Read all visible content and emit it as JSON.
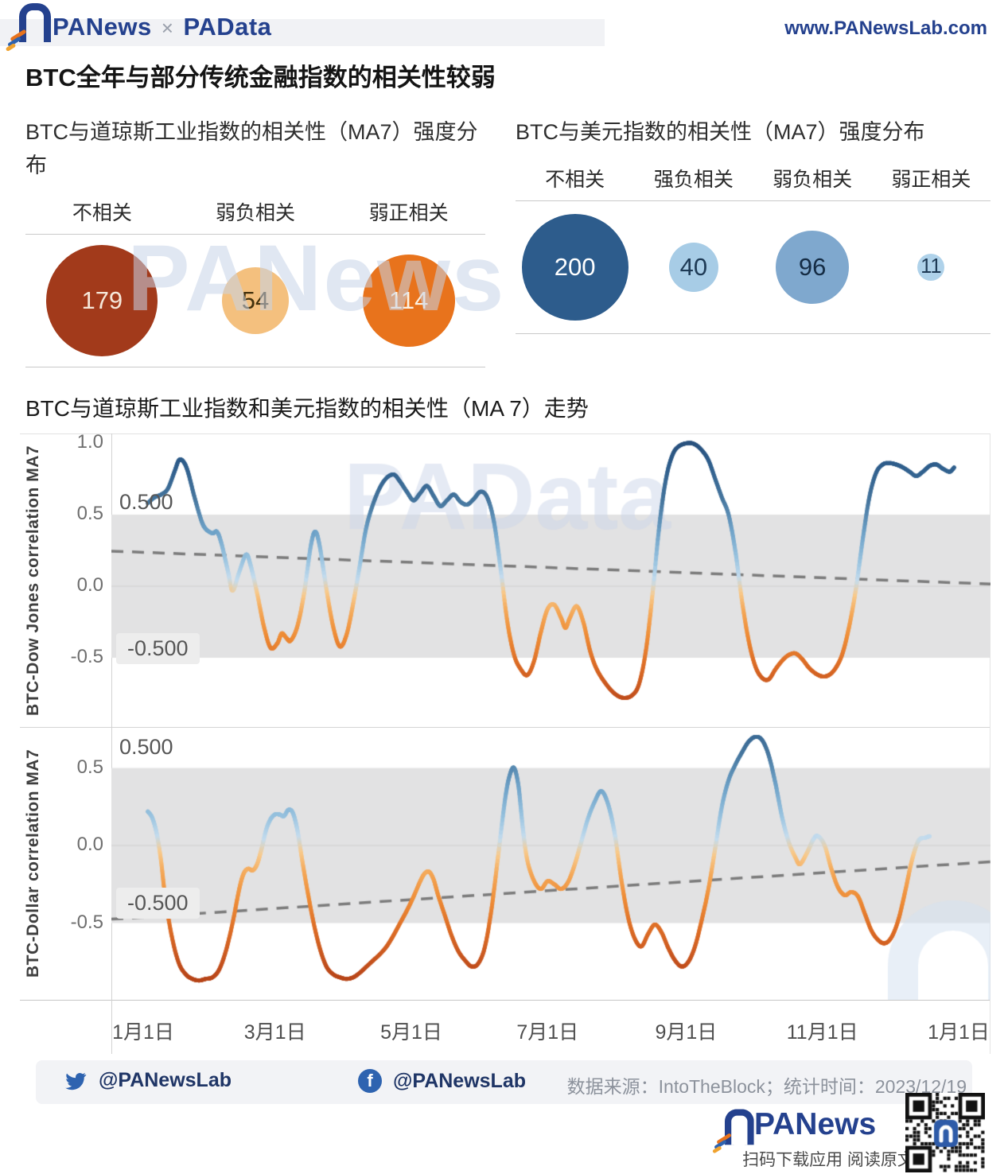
{
  "header": {
    "brand": "PANews",
    "sep": "×",
    "brand2": "PAData",
    "url": "www.PANewsLab.com"
  },
  "main_title": "BTC全年与部分传统金融指数的相关性较弱",
  "watermarks": {
    "bubbles": "PANews",
    "chart": "PAData"
  },
  "trend_title": "BTC与道琼斯工业指数和美元指数的相关性（MA 7）走势",
  "x_axis": {
    "labels": [
      "1月1日",
      "3月1日",
      "5月1日",
      "7月1日",
      "9月1日",
      "11月1日",
      "1月1日"
    ],
    "days": [
      0,
      59,
      120,
      181,
      243,
      304,
      365
    ]
  },
  "chart_data": [
    {
      "type": "bubble",
      "title": "BTC与道琼斯工业指数的相关性（MA7）强度分布",
      "categories": [
        "不相关",
        "弱负相关",
        "弱正相关"
      ],
      "values": [
        179,
        54,
        114
      ],
      "colors": [
        "#A23A1B",
        "#F4C07E",
        "#E8731C"
      ],
      "text_colors": [
        "#F6E8DA",
        "#41300C",
        "#FCF2E3"
      ],
      "radii": [
        70,
        42,
        58
      ]
    },
    {
      "type": "bubble",
      "title": "BTC与美元指数的相关性（MA7）强度分布",
      "categories": [
        "不相关",
        "强负相关",
        "弱负相关",
        "弱正相关"
      ],
      "values": [
        200,
        40,
        96,
        11
      ],
      "colors": [
        "#2D5C8C",
        "#A7CCE6",
        "#7FA8CE",
        "#AFD2EA"
      ],
      "text_colors": [
        "#FFFFFF",
        "#1E3A55",
        "#152C44",
        "#1E3A55"
      ],
      "radii": [
        67,
        31,
        46,
        17
      ]
    },
    {
      "type": "line",
      "name": "btc_dow_jones",
      "ylabel": "BTC-Dow Jones correlation MA7",
      "yticks": [
        "1.0",
        "0.5",
        "0.0",
        "-0.5"
      ],
      "ytick_values": [
        1.0,
        0.5,
        0.0,
        -0.5
      ],
      "ylim": [
        -1.0,
        1.05
      ],
      "band": [
        -0.5,
        0.5
      ],
      "band_label_top": "0.500",
      "band_label_bottom": "-0.500",
      "trend_start": 0.245,
      "trend_end": 0.015,
      "grid": false,
      "points": [
        [
          2,
          0.58
        ],
        [
          5,
          0.62
        ],
        [
          8,
          0.64
        ],
        [
          11,
          0.68
        ],
        [
          14,
          0.8
        ],
        [
          16,
          0.88
        ],
        [
          18,
          0.87
        ],
        [
          20,
          0.8
        ],
        [
          23,
          0.62
        ],
        [
          26,
          0.46
        ],
        [
          28,
          0.4
        ],
        [
          31,
          0.37
        ],
        [
          33,
          0.38
        ],
        [
          35,
          0.3
        ],
        [
          38,
          0.1
        ],
        [
          40,
          -0.03
        ],
        [
          43,
          0.1
        ],
        [
          46,
          0.22
        ],
        [
          48,
          0.15
        ],
        [
          51,
          -0.05
        ],
        [
          54,
          -0.28
        ],
        [
          57,
          -0.43
        ],
        [
          60,
          -0.4
        ],
        [
          62,
          -0.33
        ],
        [
          64,
          -0.36
        ],
        [
          66,
          -0.38
        ],
        [
          69,
          -0.28
        ],
        [
          72,
          -0.05
        ],
        [
          75,
          0.28
        ],
        [
          77,
          0.38
        ],
        [
          79,
          0.28
        ],
        [
          82,
          -0.02
        ],
        [
          85,
          -0.28
        ],
        [
          88,
          -0.42
        ],
        [
          91,
          -0.34
        ],
        [
          94,
          -0.12
        ],
        [
          97,
          0.15
        ],
        [
          100,
          0.42
        ],
        [
          104,
          0.62
        ],
        [
          108,
          0.74
        ],
        [
          112,
          0.78
        ],
        [
          115,
          0.73
        ],
        [
          118,
          0.66
        ],
        [
          121,
          0.6
        ],
        [
          124,
          0.65
        ],
        [
          127,
          0.7
        ],
        [
          130,
          0.63
        ],
        [
          133,
          0.56
        ],
        [
          136,
          0.6
        ],
        [
          139,
          0.64
        ],
        [
          142,
          0.59
        ],
        [
          145,
          0.57
        ],
        [
          148,
          0.61
        ],
        [
          151,
          0.66
        ],
        [
          154,
          0.62
        ],
        [
          157,
          0.45
        ],
        [
          160,
          0.12
        ],
        [
          163,
          -0.25
        ],
        [
          166,
          -0.48
        ],
        [
          169,
          -0.58
        ],
        [
          172,
          -0.62
        ],
        [
          175,
          -0.52
        ],
        [
          178,
          -0.32
        ],
        [
          181,
          -0.16
        ],
        [
          184,
          -0.13
        ],
        [
          187,
          -0.22
        ],
        [
          189,
          -0.29
        ],
        [
          191,
          -0.22
        ],
        [
          194,
          -0.14
        ],
        [
          197,
          -0.25
        ],
        [
          200,
          -0.45
        ],
        [
          203,
          -0.58
        ],
        [
          207,
          -0.68
        ],
        [
          211,
          -0.75
        ],
        [
          215,
          -0.78
        ],
        [
          219,
          -0.76
        ],
        [
          222,
          -0.68
        ],
        [
          225,
          -0.45
        ],
        [
          228,
          -0.05
        ],
        [
          231,
          0.42
        ],
        [
          234,
          0.75
        ],
        [
          237,
          0.92
        ],
        [
          240,
          0.98
        ],
        [
          244,
          1.0
        ],
        [
          247,
          0.99
        ],
        [
          250,
          0.95
        ],
        [
          253,
          0.88
        ],
        [
          256,
          0.75
        ],
        [
          259,
          0.62
        ],
        [
          262,
          0.5
        ],
        [
          265,
          0.25
        ],
        [
          268,
          -0.1
        ],
        [
          271,
          -0.38
        ],
        [
          274,
          -0.56
        ],
        [
          277,
          -0.64
        ],
        [
          280,
          -0.65
        ],
        [
          283,
          -0.58
        ],
        [
          286,
          -0.52
        ],
        [
          289,
          -0.48
        ],
        [
          292,
          -0.47
        ],
        [
          295,
          -0.51
        ],
        [
          298,
          -0.57
        ],
        [
          301,
          -0.61
        ],
        [
          304,
          -0.63
        ],
        [
          307,
          -0.62
        ],
        [
          310,
          -0.57
        ],
        [
          313,
          -0.47
        ],
        [
          316,
          -0.28
        ],
        [
          319,
          -0.02
        ],
        [
          322,
          0.32
        ],
        [
          325,
          0.62
        ],
        [
          328,
          0.79
        ],
        [
          331,
          0.85
        ],
        [
          334,
          0.86
        ],
        [
          337,
          0.85
        ],
        [
          340,
          0.83
        ],
        [
          343,
          0.8
        ],
        [
          346,
          0.77
        ],
        [
          349,
          0.8
        ],
        [
          352,
          0.84
        ],
        [
          355,
          0.85
        ],
        [
          358,
          0.82
        ],
        [
          361,
          0.8
        ],
        [
          363,
          0.83
        ]
      ]
    },
    {
      "type": "line",
      "name": "btc_dollar",
      "ylabel": "BTC-Dollar correlation MA7",
      "yticks": [
        "0.5",
        "0.0",
        "-0.5"
      ],
      "ytick_values": [
        0.5,
        0.0,
        -0.5
      ],
      "ylim": [
        -1.0,
        0.76
      ],
      "band": [
        -0.5,
        0.5
      ],
      "band_label_top": "0.500",
      "band_label_bottom": "-0.500",
      "trend_start": -0.475,
      "trend_end": -0.105,
      "grid": false,
      "points": [
        [
          2,
          0.22
        ],
        [
          4,
          0.18
        ],
        [
          6,
          0.08
        ],
        [
          8,
          -0.1
        ],
        [
          10,
          -0.35
        ],
        [
          13,
          -0.6
        ],
        [
          16,
          -0.76
        ],
        [
          19,
          -0.83
        ],
        [
          22,
          -0.86
        ],
        [
          25,
          -0.87
        ],
        [
          28,
          -0.86
        ],
        [
          31,
          -0.85
        ],
        [
          34,
          -0.8
        ],
        [
          37,
          -0.68
        ],
        [
          40,
          -0.5
        ],
        [
          43,
          -0.28
        ],
        [
          45,
          -0.18
        ],
        [
          47,
          -0.15
        ],
        [
          49,
          -0.16
        ],
        [
          51,
          -0.12
        ],
        [
          53,
          -0.02
        ],
        [
          55,
          0.1
        ],
        [
          57,
          0.17
        ],
        [
          59,
          0.2
        ],
        [
          61,
          0.2
        ],
        [
          63,
          0.19
        ],
        [
          65,
          0.23
        ],
        [
          67,
          0.21
        ],
        [
          69,
          0.1
        ],
        [
          71,
          -0.08
        ],
        [
          73,
          -0.25
        ],
        [
          76,
          -0.48
        ],
        [
          79,
          -0.66
        ],
        [
          82,
          -0.78
        ],
        [
          85,
          -0.83
        ],
        [
          88,
          -0.85
        ],
        [
          91,
          -0.86
        ],
        [
          94,
          -0.85
        ],
        [
          97,
          -0.82
        ],
        [
          100,
          -0.78
        ],
        [
          103,
          -0.74
        ],
        [
          106,
          -0.7
        ],
        [
          109,
          -0.65
        ],
        [
          112,
          -0.58
        ],
        [
          115,
          -0.5
        ],
        [
          118,
          -0.42
        ],
        [
          121,
          -0.33
        ],
        [
          124,
          -0.23
        ],
        [
          126,
          -0.18
        ],
        [
          128,
          -0.17
        ],
        [
          130,
          -0.22
        ],
        [
          132,
          -0.32
        ],
        [
          135,
          -0.45
        ],
        [
          138,
          -0.58
        ],
        [
          141,
          -0.68
        ],
        [
          144,
          -0.74
        ],
        [
          147,
          -0.78
        ],
        [
          150,
          -0.76
        ],
        [
          153,
          -0.65
        ],
        [
          156,
          -0.4
        ],
        [
          159,
          -0.05
        ],
        [
          162,
          0.3
        ],
        [
          164,
          0.45
        ],
        [
          166,
          0.5
        ],
        [
          168,
          0.38
        ],
        [
          170,
          0.1
        ],
        [
          172,
          -0.1
        ],
        [
          175,
          -0.23
        ],
        [
          178,
          -0.28
        ],
        [
          181,
          -0.23
        ],
        [
          184,
          -0.25
        ],
        [
          187,
          -0.28
        ],
        [
          190,
          -0.24
        ],
        [
          193,
          -0.13
        ],
        [
          196,
          0.02
        ],
        [
          199,
          0.17
        ],
        [
          202,
          0.28
        ],
        [
          205,
          0.35
        ],
        [
          208,
          0.27
        ],
        [
          211,
          0.08
        ],
        [
          214,
          -0.22
        ],
        [
          217,
          -0.46
        ],
        [
          220,
          -0.6
        ],
        [
          223,
          -0.65
        ],
        [
          226,
          -0.57
        ],
        [
          229,
          -0.51
        ],
        [
          232,
          -0.56
        ],
        [
          235,
          -0.66
        ],
        [
          238,
          -0.74
        ],
        [
          241,
          -0.78
        ],
        [
          244,
          -0.75
        ],
        [
          247,
          -0.65
        ],
        [
          250,
          -0.48
        ],
        [
          253,
          -0.28
        ],
        [
          256,
          -0.02
        ],
        [
          259,
          0.25
        ],
        [
          262,
          0.42
        ],
        [
          265,
          0.52
        ],
        [
          268,
          0.6
        ],
        [
          271,
          0.67
        ],
        [
          274,
          0.7
        ],
        [
          277,
          0.68
        ],
        [
          280,
          0.58
        ],
        [
          283,
          0.4
        ],
        [
          286,
          0.18
        ],
        [
          289,
          0.02
        ],
        [
          292,
          -0.08
        ],
        [
          294,
          -0.12
        ],
        [
          297,
          -0.05
        ],
        [
          300,
          0.04
        ],
        [
          302,
          0.06
        ],
        [
          305,
          0.0
        ],
        [
          308,
          -0.15
        ],
        [
          311,
          -0.27
        ],
        [
          314,
          -0.32
        ],
        [
          317,
          -0.3
        ],
        [
          320,
          -0.33
        ],
        [
          323,
          -0.44
        ],
        [
          326,
          -0.55
        ],
        [
          329,
          -0.61
        ],
        [
          332,
          -0.63
        ],
        [
          335,
          -0.59
        ],
        [
          338,
          -0.48
        ],
        [
          341,
          -0.3
        ],
        [
          344,
          -0.1
        ],
        [
          347,
          0.03
        ],
        [
          350,
          0.05
        ],
        [
          352,
          0.06
        ]
      ]
    }
  ],
  "footer": {
    "twitter_handle": "@PANewsLab",
    "facebook_handle": "@PANewsLab",
    "source_text": "数据来源：IntoTheBlock；统计时间：2023/12/19",
    "logo_text": "PANews",
    "tagline": "扫码下载应用  阅读原文"
  }
}
